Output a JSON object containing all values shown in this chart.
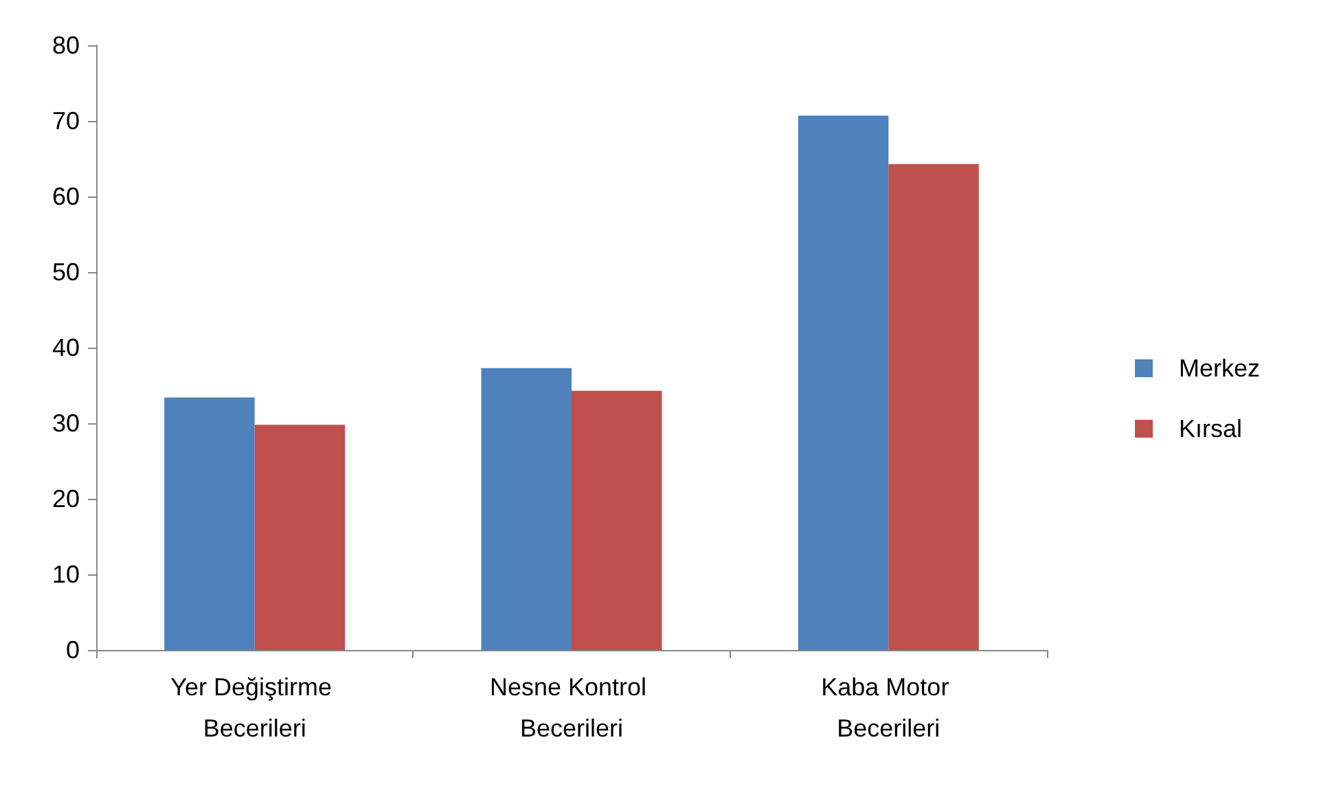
{
  "chart_data": {
    "type": "bar",
    "categories": [
      "Yer Değiştirme Becerileri",
      "Nesne Kontrol Becerileri",
      "Kaba Motor Becerileri"
    ],
    "series": [
      {
        "name": "Merkez",
        "color": "#4f81bd",
        "values": [
          33.4,
          37.3,
          70.7
        ]
      },
      {
        "name": "Kırsal",
        "color": "#c0504d",
        "values": [
          29.8,
          34.3,
          64.3
        ]
      }
    ],
    "ylim": [
      0,
      80
    ],
    "yticks": [
      0,
      10,
      20,
      30,
      40,
      50,
      60,
      70,
      80
    ],
    "grid": false,
    "legend": "right"
  }
}
